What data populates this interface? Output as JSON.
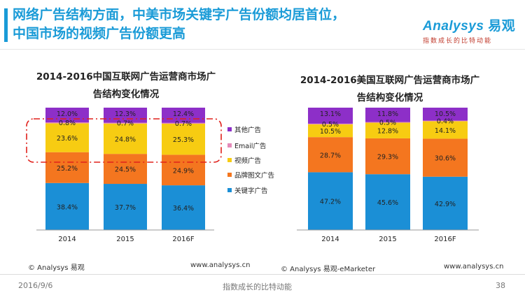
{
  "headline": {
    "line1": "网络广告结构方面，中美市场关键字广告份额均居首位，",
    "line2": "中国市场的视频广告份额更高"
  },
  "logo": {
    "name": "Analysys",
    "name_cn": "易观",
    "tagline": "指数成长的比特动能"
  },
  "colors": {
    "keyword": "#1b8fd6",
    "brand": "#f4761f",
    "email": "#e48ab9",
    "video": "#f7cc12",
    "other": "#8d2fc8",
    "highlight": "#e0201b",
    "accent": "#1a9bd7"
  },
  "legend": [
    {
      "key": "other",
      "label": "其他广告"
    },
    {
      "key": "email",
      "label": "Email广告"
    },
    {
      "key": "video",
      "label": "视频广告"
    },
    {
      "key": "brand",
      "label": "品牌图文广告"
    },
    {
      "key": "keyword",
      "label": "关键字广告"
    }
  ],
  "chart_data": [
    {
      "type": "bar",
      "stacked": true,
      "title_line1": "2014-2016中国互联网广告运营商市场广",
      "title_line2": "告结构变化情况",
      "categories": [
        "2014",
        "2015",
        "2016F"
      ],
      "ylim": [
        0,
        100
      ],
      "series": [
        {
          "name": "关键字广告",
          "key": "keyword",
          "values": [
            38.4,
            37.7,
            36.4
          ]
        },
        {
          "name": "品牌图文广告",
          "key": "brand",
          "values": [
            25.2,
            24.5,
            24.9
          ]
        },
        {
          "name": "视频广告",
          "key": "video",
          "values": [
            23.6,
            24.8,
            25.3
          ]
        },
        {
          "name": "Email广告",
          "key": "email",
          "values": [
            0.8,
            0.7,
            0.7
          ]
        },
        {
          "name": "其他广告",
          "key": "other",
          "values": [
            12.0,
            12.3,
            12.4
          ]
        }
      ],
      "labels": {
        "keyword": [
          "38.4%",
          "37.7%",
          "36.4%"
        ],
        "brand": [
          "25.2%",
          "24.5%",
          "24.9%"
        ],
        "video": [
          "23.6%",
          "24.8%",
          "25.3%"
        ],
        "email": [
          "0.8%",
          "0.7%",
          "0.7%"
        ],
        "other": [
          "12.0%",
          "12.3%",
          "12.4%"
        ]
      },
      "source": "© Analysys 易观",
      "website": "www.analysys.cn"
    },
    {
      "type": "bar",
      "stacked": true,
      "title_line1": "2014-2016美国互联网广告运营商市场广",
      "title_line2": "告结构变化情况",
      "categories": [
        "2014",
        "2015",
        "2016F"
      ],
      "ylim": [
        0,
        100
      ],
      "series": [
        {
          "name": "关键字广告",
          "key": "keyword",
          "values": [
            47.2,
            45.6,
            42.9
          ]
        },
        {
          "name": "品牌图文广告",
          "key": "brand",
          "values": [
            28.7,
            29.3,
            30.6
          ]
        },
        {
          "name": "视频广告",
          "key": "video",
          "values": [
            10.5,
            12.8,
            14.1
          ]
        },
        {
          "name": "Email广告",
          "key": "email",
          "values": [
            0.5,
            0.5,
            0.4
          ]
        },
        {
          "name": "其他广告",
          "key": "other",
          "values": [
            13.1,
            11.8,
            10.5
          ]
        }
      ],
      "labels": {
        "keyword": [
          "47.2%",
          "45.6%",
          "42.9%"
        ],
        "brand": [
          "28.7%",
          "29.3%",
          "30.6%"
        ],
        "video": [
          "10.5%",
          "12.8%",
          "14.1%"
        ],
        "email": [
          "0.5%",
          "0.5%",
          "0.4%"
        ],
        "other": [
          "13.1%",
          "11.8%",
          "10.5%"
        ]
      },
      "source": "© Analysys 易观-eMarketer",
      "website": "www.analysys.cn"
    }
  ],
  "footer": {
    "date": "2016/9/6",
    "slogan": "指数成长的比特动能",
    "page": "38"
  }
}
